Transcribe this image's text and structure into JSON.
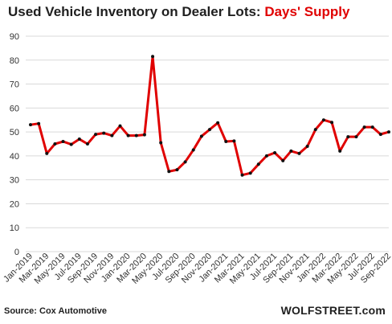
{
  "title_part1": "Used Vehicle Inventory on Dealer Lots: ",
  "title_part2": "Days' Supply",
  "source": "Source: Cox Automotive",
  "brand": "WOLFSTREET.com",
  "colors": {
    "line": "#e00000",
    "marker": "#111111",
    "grid": "#d9d9d9",
    "title_accent": "#e00000"
  },
  "chart_data": {
    "type": "line",
    "title": "Used Vehicle Inventory on Dealer Lots: Days' Supply",
    "xlabel": "",
    "ylabel": "",
    "ylim": [
      0,
      90
    ],
    "yticks": [
      0,
      10,
      20,
      30,
      40,
      50,
      60,
      70,
      80,
      90
    ],
    "grid": true,
    "x": [
      "Jan-2019",
      "Feb-2019",
      "Mar-2019",
      "Apr-2019",
      "May-2019",
      "Jun-2019",
      "Jul-2019",
      "Aug-2019",
      "Sep-2019",
      "Oct-2019",
      "Nov-2019",
      "Dec-2019",
      "Jan-2020",
      "Feb-2020",
      "Mar-2020",
      "Apr-2020",
      "May-2020",
      "Jun-2020",
      "Jul-2020",
      "Aug-2020",
      "Sep-2020",
      "Oct-2020",
      "Nov-2020",
      "Dec-2020",
      "Jan-2021",
      "Feb-2021",
      "Mar-2021",
      "Apr-2021",
      "May-2021",
      "Jun-2021",
      "Jul-2021",
      "Aug-2021",
      "Sep-2021",
      "Oct-2021",
      "Nov-2021",
      "Dec-2021",
      "Jan-2022",
      "Feb-2022",
      "Mar-2022",
      "Apr-2022",
      "May-2022",
      "Jun-2022",
      "Jul-2022",
      "Aug-2022",
      "Sep-2022"
    ],
    "x_tick_labels": [
      "Jan-2019",
      "Mar-2019",
      "May-2019",
      "Jul-2019",
      "Sep-2019",
      "Nov-2019",
      "Jan-2020",
      "Mar-2020",
      "May-2020",
      "Jul-2020",
      "Sep-2020",
      "Nov-2020",
      "Jan-2021",
      "Mar-2021",
      "May-2021",
      "Jul-2021",
      "Sep-2021",
      "Nov-2021",
      "Jan-2022",
      "Mar-2022",
      "May-2022",
      "Jul-2022",
      "Sep-2022"
    ],
    "series": [
      {
        "values": [
          53,
          53.5,
          41,
          45,
          46,
          44.8,
          47,
          45,
          49,
          49.5,
          48.5,
          52.5,
          48.5,
          48.5,
          48.8,
          81.5,
          45.5,
          33.5,
          34.2,
          37.5,
          42.5,
          48.2,
          51,
          53.8,
          46,
          46.2,
          32,
          32.8,
          36.5,
          40,
          41.3,
          38,
          42,
          41,
          44,
          51,
          55,
          54,
          42,
          48,
          48,
          52,
          52,
          49,
          50
        ]
      }
    ]
  }
}
